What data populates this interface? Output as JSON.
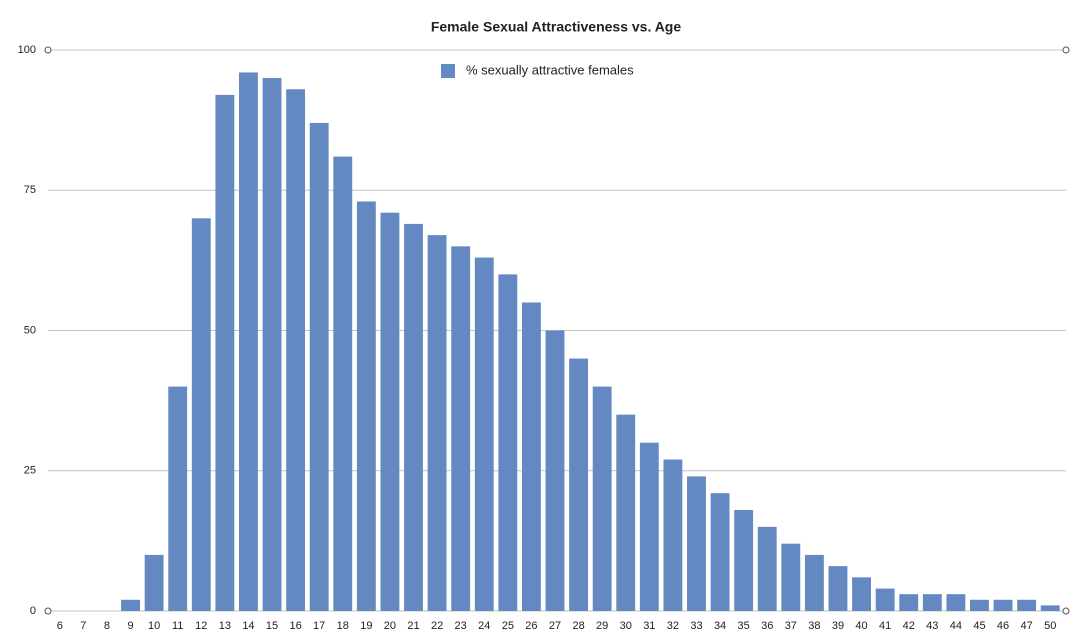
{
  "chart_data": {
    "type": "bar",
    "title": "Female Sexual Attractiveness vs. Age",
    "categories": [
      6,
      7,
      8,
      9,
      10,
      11,
      12,
      13,
      14,
      15,
      16,
      17,
      18,
      19,
      20,
      21,
      22,
      23,
      24,
      25,
      26,
      27,
      28,
      29,
      30,
      31,
      32,
      33,
      34,
      35,
      36,
      37,
      38,
      39,
      40,
      41,
      42,
      43,
      44,
      45,
      46,
      47,
      50
    ],
    "series": [
      {
        "name": "% sexually attractive females",
        "color": "#6488c1",
        "values": [
          0,
          0,
          0,
          2,
          10,
          40,
          70,
          92,
          96,
          95,
          93,
          87,
          81,
          73,
          71,
          69,
          67,
          65,
          63,
          60,
          55,
          50,
          45,
          40,
          35,
          30,
          27,
          24,
          21,
          18,
          15,
          12,
          10,
          8,
          6,
          4,
          3,
          3,
          3,
          2,
          2,
          2,
          1
        ]
      }
    ],
    "ylim": [
      0,
      100
    ],
    "yticks": [
      0,
      25,
      50,
      75,
      100
    ],
    "grid": true,
    "legend": "top"
  }
}
